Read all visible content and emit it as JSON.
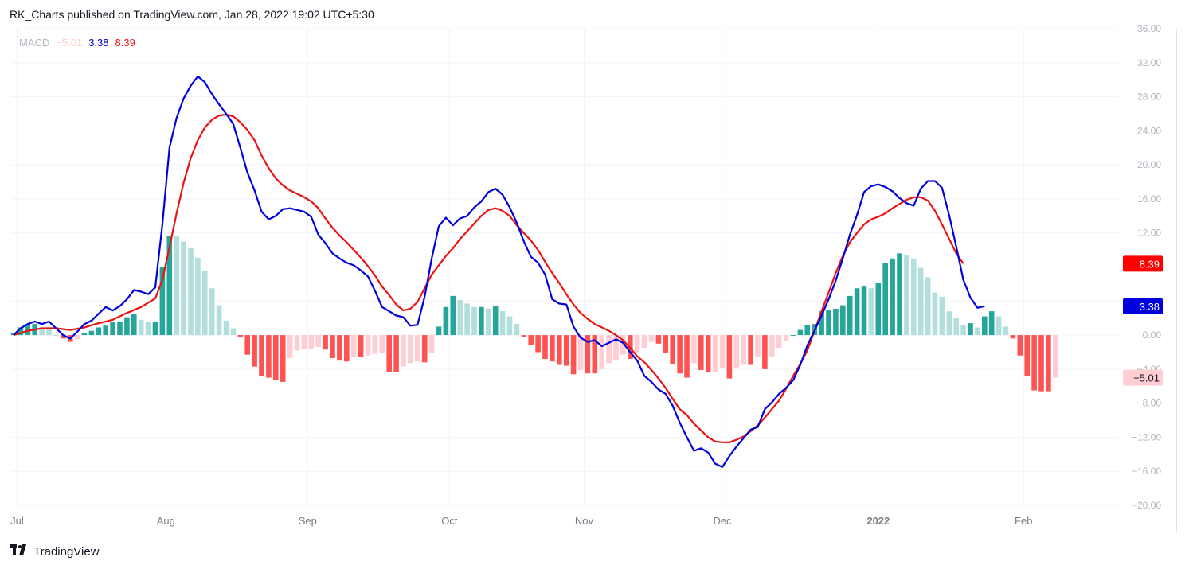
{
  "header": {
    "publisher": "RK_Charts published on TradingView.com, Jan 28, 2022 19:02 UTC+5:30"
  },
  "legend": {
    "name": "MACD",
    "hist_value": "−5.01",
    "macd_value": "3.38",
    "signal_value": "8.39"
  },
  "footer": {
    "logo_text": "TradingView"
  },
  "colors": {
    "macd": "#0000dd",
    "signal": "#ee1111",
    "hist_up_strong": "#26a69a",
    "hist_up_weak": "#b2dfdb",
    "hist_down_strong": "#ff5252",
    "hist_down_weak": "#ffcdd2",
    "grid": "#f0f3fa",
    "axis_text": "#b2b5be"
  },
  "chart_data": {
    "type": "line",
    "title": "",
    "ylim": [
      -20,
      36
    ],
    "y_ticks": [
      "36.00",
      "32.00",
      "28.00",
      "24.00",
      "20.00",
      "16.00",
      "12.00",
      "8.00",
      "4.00",
      "0.00",
      "−4.00",
      "−8.00",
      "−12.00",
      "−16.00",
      "−20.00"
    ],
    "x_labels": [
      "Jul",
      "Aug",
      "Sep",
      "Oct",
      "Nov",
      "Dec",
      "2022",
      "Feb"
    ],
    "x_label_pos": [
      0.5,
      21.5,
      41.5,
      61.5,
      80.5,
      100,
      122,
      142.5
    ],
    "n_bars": 141,
    "price_tags": [
      {
        "value": 8.39,
        "label": "8.39",
        "series": "signal"
      },
      {
        "value": 3.38,
        "label": "3.38",
        "series": "macd"
      },
      {
        "value": -5.01,
        "label": "−5.01",
        "series": "histogram"
      }
    ],
    "series": [
      {
        "name": "MACD",
        "points": [
          [
            0,
            0
          ],
          [
            1,
            0.8
          ],
          [
            2,
            1.3
          ],
          [
            3,
            1.6
          ],
          [
            4,
            1.3
          ],
          [
            5,
            1.6
          ],
          [
            6,
            0.8
          ],
          [
            7,
            0
          ],
          [
            8,
            -0.4
          ],
          [
            9,
            0.4
          ],
          [
            10,
            1.3
          ],
          [
            11,
            1.7
          ],
          [
            12,
            2.5
          ],
          [
            13,
            3.3
          ],
          [
            14,
            2.9
          ],
          [
            15,
            3.4
          ],
          [
            16,
            4.2
          ],
          [
            17,
            5.3
          ],
          [
            18,
            5.1
          ],
          [
            19,
            4.8
          ],
          [
            20,
            5.6
          ],
          [
            21,
            13
          ],
          [
            22,
            22
          ],
          [
            23,
            25.5
          ],
          [
            24,
            27.8
          ],
          [
            25,
            29.3
          ],
          [
            26,
            30.4
          ],
          [
            27,
            29.7
          ],
          [
            28,
            28.3
          ],
          [
            29,
            27.1
          ],
          [
            30,
            26
          ],
          [
            31,
            24.8
          ],
          [
            32,
            22
          ],
          [
            33,
            19.1
          ],
          [
            34,
            17
          ],
          [
            35,
            14.5
          ],
          [
            36,
            13.6
          ],
          [
            37,
            14
          ],
          [
            38,
            14.8
          ],
          [
            39,
            14.9
          ],
          [
            40,
            14.7
          ],
          [
            41,
            14.5
          ],
          [
            42,
            13.9
          ],
          [
            43,
            11.8
          ],
          [
            44,
            10.8
          ],
          [
            45,
            9.6
          ],
          [
            46,
            9
          ],
          [
            47,
            8.5
          ],
          [
            48,
            8.2
          ],
          [
            49,
            7.6
          ],
          [
            50,
            6.9
          ],
          [
            51,
            5.2
          ],
          [
            52,
            3.3
          ],
          [
            53,
            2.8
          ],
          [
            54,
            2.3
          ],
          [
            55,
            2.1
          ],
          [
            56,
            1.1
          ],
          [
            57,
            1.2
          ],
          [
            58,
            4.5
          ],
          [
            59,
            9
          ],
          [
            60,
            12.8
          ],
          [
            61,
            13.8
          ],
          [
            62,
            12.9
          ],
          [
            63,
            13.7
          ],
          [
            64,
            14
          ],
          [
            65,
            15
          ],
          [
            66,
            15.7
          ],
          [
            67,
            16.8
          ],
          [
            68,
            17.2
          ],
          [
            69,
            16.5
          ],
          [
            70,
            15
          ],
          [
            71,
            13.2
          ],
          [
            72,
            11
          ],
          [
            73,
            9.2
          ],
          [
            74,
            8.5
          ],
          [
            75,
            7.1
          ],
          [
            76,
            4.2
          ],
          [
            77,
            3.7
          ],
          [
            78,
            3.6
          ],
          [
            79,
            1
          ],
          [
            80,
            -0.3
          ],
          [
            81,
            -0.8
          ],
          [
            82,
            -0.6
          ],
          [
            83,
            -1.3
          ],
          [
            84,
            -0.9
          ],
          [
            85,
            -0.5
          ],
          [
            86,
            -0.9
          ],
          [
            87,
            -2
          ],
          [
            88,
            -3
          ],
          [
            89,
            -4.8
          ],
          [
            90,
            -5.5
          ],
          [
            91,
            -6.4
          ],
          [
            92,
            -6.9
          ],
          [
            93,
            -8.3
          ],
          [
            94,
            -10.3
          ],
          [
            95,
            -12
          ],
          [
            96,
            -13.6
          ],
          [
            97,
            -13.3
          ],
          [
            98,
            -13.8
          ],
          [
            99,
            -15.1
          ],
          [
            100,
            -15.5
          ],
          [
            101,
            -14.2
          ],
          [
            102,
            -13.1
          ],
          [
            103,
            -12.1
          ],
          [
            104,
            -11.1
          ],
          [
            105,
            -10.8
          ],
          [
            106,
            -8.7
          ],
          [
            107,
            -7.9
          ],
          [
            108,
            -6.9
          ],
          [
            109,
            -6.2
          ],
          [
            110,
            -5.3
          ],
          [
            111,
            -3.5
          ],
          [
            112,
            -1.2
          ],
          [
            113,
            0.5
          ],
          [
            114,
            2.3
          ],
          [
            115,
            4.2
          ],
          [
            116,
            6.4
          ],
          [
            117,
            9
          ],
          [
            118,
            11.8
          ],
          [
            119,
            14.1
          ],
          [
            120,
            16.8
          ],
          [
            121,
            17.5
          ],
          [
            122,
            17.7
          ],
          [
            123,
            17.4
          ],
          [
            124,
            16.9
          ],
          [
            125,
            16.1
          ],
          [
            126,
            15.5
          ],
          [
            127,
            15.2
          ],
          [
            128,
            17.2
          ],
          [
            129,
            18.1
          ],
          [
            130,
            18.1
          ],
          [
            131,
            17.3
          ],
          [
            132,
            14.1
          ],
          [
            133,
            10.4
          ],
          [
            134,
            6.5
          ],
          [
            135,
            4.4
          ],
          [
            136,
            3.2
          ],
          [
            137,
            3.4
          ]
        ]
      },
      {
        "name": "Signal",
        "points": [
          [
            0,
            0
          ],
          [
            2,
            0.5
          ],
          [
            4,
            0.8
          ],
          [
            6,
            0.8
          ],
          [
            8,
            0.6
          ],
          [
            10,
            0.9
          ],
          [
            12,
            1.4
          ],
          [
            14,
            1.8
          ],
          [
            16,
            2.6
          ],
          [
            18,
            3.3
          ],
          [
            20,
            4.3
          ],
          [
            21,
            6.5
          ],
          [
            22,
            10.3
          ],
          [
            23,
            14.3
          ],
          [
            24,
            17.9
          ],
          [
            25,
            20.8
          ],
          [
            26,
            22.9
          ],
          [
            27,
            24.4
          ],
          [
            28,
            25.3
          ],
          [
            29,
            25.8
          ],
          [
            30,
            25.9
          ],
          [
            31,
            25.7
          ],
          [
            32,
            25
          ],
          [
            33,
            24.1
          ],
          [
            34,
            22.9
          ],
          [
            35,
            21.1
          ],
          [
            36,
            19.6
          ],
          [
            37,
            18.4
          ],
          [
            38,
            17.6
          ],
          [
            39,
            17
          ],
          [
            40,
            16.6
          ],
          [
            41,
            16.2
          ],
          [
            42,
            15.7
          ],
          [
            43,
            14.9
          ],
          [
            44,
            13.7
          ],
          [
            45,
            12.6
          ],
          [
            46,
            11.7
          ],
          [
            47,
            10.9
          ],
          [
            48,
            10
          ],
          [
            49,
            9.1
          ],
          [
            50,
            8.1
          ],
          [
            51,
            7
          ],
          [
            52,
            5.7
          ],
          [
            53,
            4.7
          ],
          [
            54,
            3.6
          ],
          [
            55,
            2.9
          ],
          [
            56,
            3.1
          ],
          [
            57,
            3.9
          ],
          [
            58,
            5.5
          ],
          [
            59,
            7.1
          ],
          [
            60,
            8.2
          ],
          [
            61,
            9.3
          ],
          [
            62,
            10.2
          ],
          [
            63,
            11.3
          ],
          [
            64,
            12.2
          ],
          [
            65,
            13.1
          ],
          [
            66,
            14
          ],
          [
            67,
            14.7
          ],
          [
            68,
            14.9
          ],
          [
            69,
            14.6
          ],
          [
            70,
            14
          ],
          [
            71,
            12.9
          ],
          [
            72,
            12
          ],
          [
            73,
            11.1
          ],
          [
            74,
            10
          ],
          [
            75,
            8.6
          ],
          [
            76,
            7.3
          ],
          [
            77,
            6.1
          ],
          [
            78,
            4.8
          ],
          [
            79,
            3.6
          ],
          [
            80,
            2.6
          ],
          [
            81,
            1.9
          ],
          [
            82,
            1.3
          ],
          [
            83,
            0.9
          ],
          [
            84,
            0.5
          ],
          [
            85,
            0
          ],
          [
            86,
            -0.6
          ],
          [
            87,
            -1.5
          ],
          [
            88,
            -2.5
          ],
          [
            89,
            -3.2
          ],
          [
            90,
            -4.1
          ],
          [
            91,
            -5.1
          ],
          [
            92,
            -6.2
          ],
          [
            93,
            -7.5
          ],
          [
            94,
            -8.7
          ],
          [
            95,
            -9.4
          ],
          [
            96,
            -10.4
          ],
          [
            97,
            -11.2
          ],
          [
            98,
            -12
          ],
          [
            99,
            -12.5
          ],
          [
            100,
            -12.6
          ],
          [
            101,
            -12.6
          ],
          [
            102,
            -12.3
          ],
          [
            103,
            -11.9
          ],
          [
            104,
            -11.3
          ],
          [
            105,
            -10.6
          ],
          [
            106,
            -9.7
          ],
          [
            107,
            -8.7
          ],
          [
            108,
            -7.7
          ],
          [
            109,
            -6.3
          ],
          [
            110,
            -4.8
          ],
          [
            111,
            -3.4
          ],
          [
            112,
            -1.8
          ],
          [
            113,
            0.5
          ],
          [
            114,
            2.8
          ],
          [
            115,
            5
          ],
          [
            116,
            7.3
          ],
          [
            117,
            9.3
          ],
          [
            118,
            10.9
          ],
          [
            119,
            12
          ],
          [
            120,
            13
          ],
          [
            121,
            13.6
          ],
          [
            122,
            13.9
          ],
          [
            123,
            14.3
          ],
          [
            124,
            14.9
          ],
          [
            125,
            15.4
          ],
          [
            126,
            15.9
          ],
          [
            127,
            16.2
          ],
          [
            128,
            16.2
          ],
          [
            129,
            15.8
          ],
          [
            130,
            14.6
          ],
          [
            131,
            13
          ],
          [
            132,
            11.3
          ],
          [
            133,
            9.6
          ],
          [
            134,
            8.4
          ]
        ]
      },
      {
        "name": "Histogram",
        "values": [
          0.2,
          0.9,
          1.3,
          1.3,
          0.9,
          0.8,
          0,
          -0.4,
          -0.8,
          -0.5,
          0.2,
          0.5,
          0.9,
          1.1,
          1.6,
          1.6,
          2.1,
          2.5,
          1.8,
          1.6,
          1.6,
          8,
          11.7,
          11.6,
          11,
          10.2,
          9.1,
          7.5,
          5.5,
          3.5,
          1.7,
          0.8,
          -0.2,
          -2.3,
          -3.7,
          -4.8,
          -5,
          -5.3,
          -5.5,
          -2.7,
          -1.8,
          -1.7,
          -1.6,
          -1.4,
          -1.7,
          -2.7,
          -3,
          -3.1,
          -2.6,
          -2.6,
          -2.4,
          -2.2,
          -2.1,
          -4.3,
          -4.3,
          -3.7,
          -3.3,
          -3.1,
          -3.2,
          -2.1,
          1,
          3.3,
          4.6,
          4.1,
          3.7,
          3.3,
          3.3,
          3.1,
          3.4,
          2.8,
          2.2,
          1.3,
          -0.2,
          -1.2,
          -2,
          -2.8,
          -3.1,
          -3.5,
          -3.6,
          -4.6,
          -4.1,
          -4.5,
          -4.5,
          -4,
          -3.3,
          -3,
          -2.3,
          -2.8,
          -2,
          -1.5,
          -0.8,
          -1,
          -2.1,
          -3.4,
          -4.5,
          -5,
          -3.3,
          -4.1,
          -4.4,
          -4.3,
          -3.9,
          -5.1,
          -3.8,
          -3.5,
          -3.5,
          -2.6,
          -4,
          -2.5,
          -1.5,
          -0.7,
          0,
          0.6,
          1.2,
          1.3,
          2.8,
          2.9,
          3.1,
          3.5,
          4.6,
          5.5,
          5.7,
          5.5,
          6.1,
          8.5,
          9,
          9.6,
          9.4,
          9,
          7.9,
          6.8,
          5,
          4.5,
          2.8,
          2,
          1.2,
          1.4,
          0.9,
          2.2,
          2.8,
          2.2,
          1,
          -0.4,
          -2.4,
          -4.8,
          -6.5,
          -6.6,
          -6.6,
          -5
        ]
      }
    ]
  }
}
